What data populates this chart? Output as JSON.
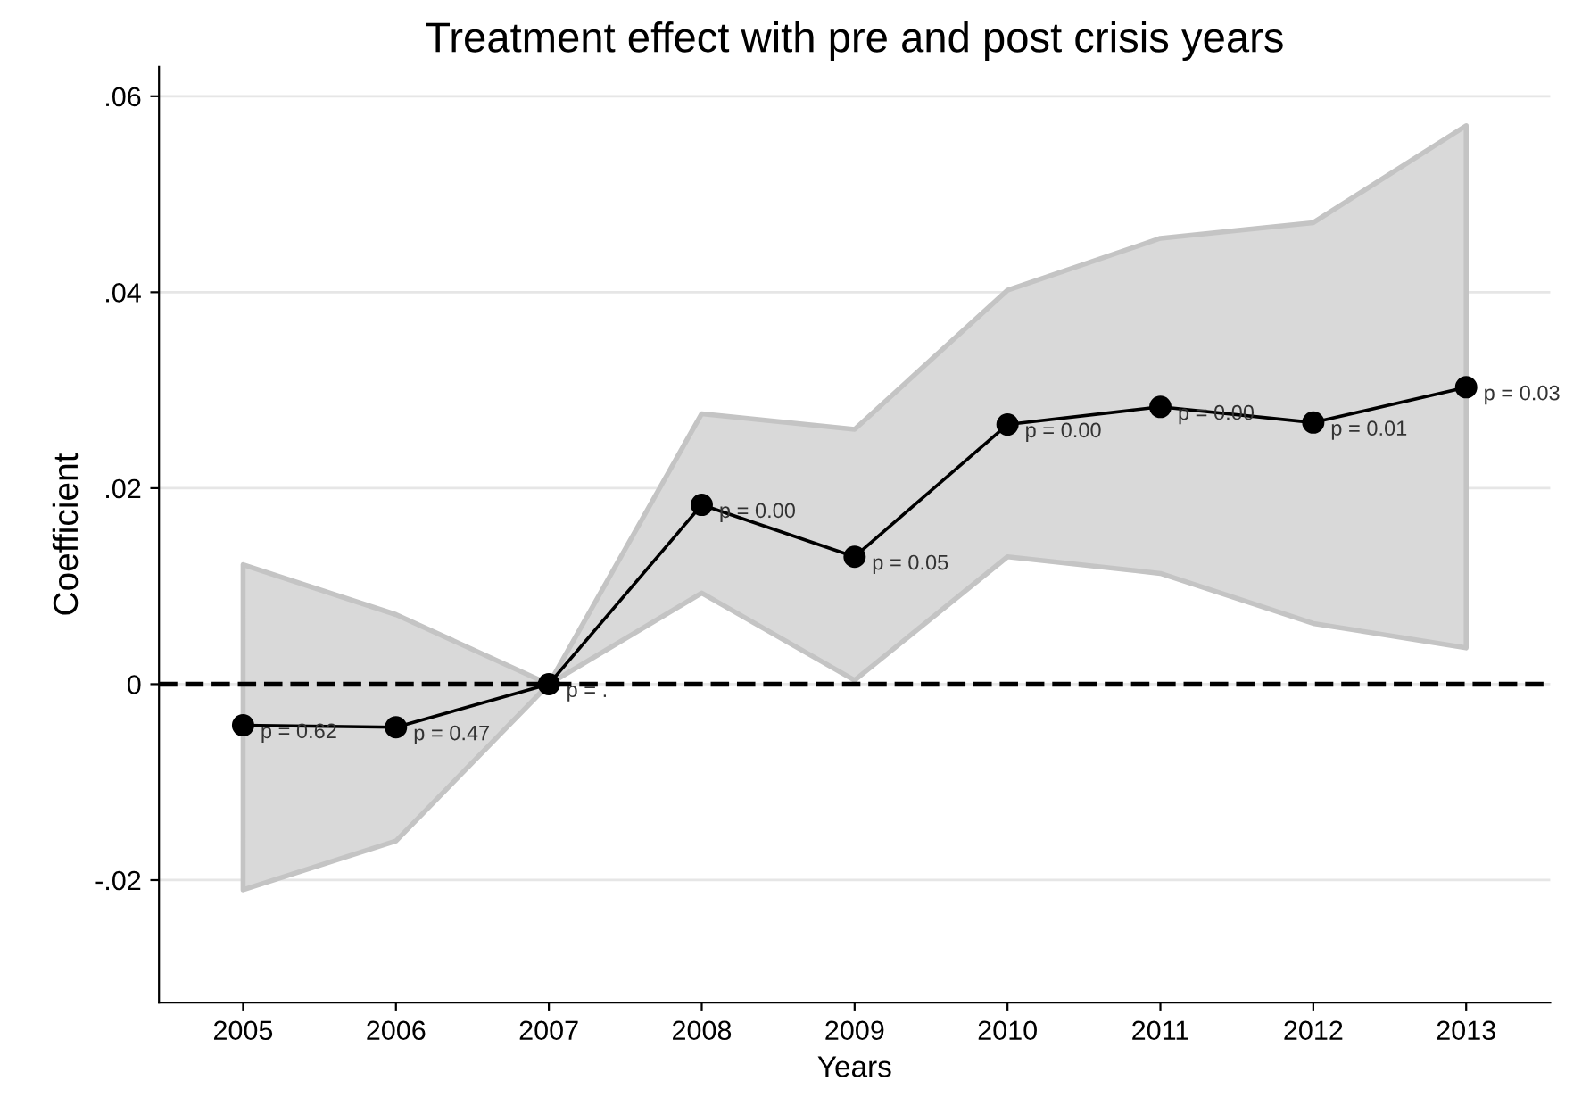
{
  "chart_data": {
    "type": "line",
    "title": "Treatment effect with pre and post crisis years",
    "xlabel": "Years",
    "ylabel": "Coefficient",
    "categories": [
      "2005",
      "2006",
      "2007",
      "2008",
      "2009",
      "2010",
      "2011",
      "2012",
      "2013"
    ],
    "series": [
      {
        "color": "#000000",
        "values": [
          -0.0042,
          -0.0044,
          0,
          0.0183,
          0.013,
          0.0265,
          0.0283,
          0.0267,
          0.0303
        ],
        "lower": [
          -0.021,
          -0.016,
          0,
          0.0093,
          0.0004,
          0.013,
          0.0113,
          0.0062,
          0.0037
        ],
        "upper": [
          0.0122,
          0.0071,
          0,
          0.0276,
          0.026,
          0.0402,
          0.0455,
          0.0471,
          0.057
        ]
      }
    ],
    "ylim": [
      -0.0325,
      0.063
    ],
    "yticks": [
      {
        "value": -0.02,
        "label": "-.02"
      },
      0,
      {
        "value": 0.02,
        "label": ".02"
      },
      {
        "value": 0.04,
        "label": ".04"
      },
      {
        "value": 0.06,
        "label": ".06"
      }
    ],
    "ref_lines": [
      {
        "axis": "y",
        "value": 0,
        "color": "#000000",
        "line_style": "dashed"
      }
    ],
    "annotations": [
      {
        "text": "p = 0.62",
        "x": "2005",
        "y": -0.0042
      },
      {
        "text": "p = 0.47",
        "x": "2006",
        "y": -0.0044
      },
      {
        "text": "p = .",
        "x": "2007",
        "y": 0
      },
      {
        "text": "p = 0.00",
        "x": "2008",
        "y": 0.0183
      },
      {
        "text": "p = 0.05",
        "x": "2009",
        "y": 0.013
      },
      {
        "text": "p = 0.00",
        "x": "2010",
        "y": 0.0265
      },
      {
        "text": "p = 0.00",
        "x": "2011",
        "y": 0.0283
      },
      {
        "text": "p = 0.01",
        "x": "2012",
        "y": 0.0267
      },
      {
        "text": "p = 0.03",
        "x": "2013",
        "y": 0.0303
      }
    ],
    "grid": "y",
    "marker": "circle",
    "line_style": "solid",
    "legend": false
  }
}
